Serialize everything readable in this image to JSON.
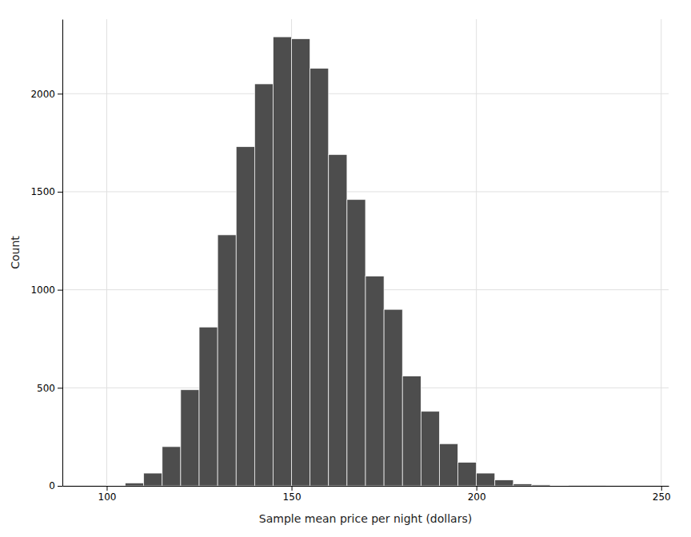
{
  "chart_data": {
    "type": "histogram",
    "xlabel": "Sample mean price per night (dollars)",
    "ylabel": "Count",
    "bins": [
      100,
      105,
      110,
      115,
      120,
      125,
      130,
      135,
      140,
      145,
      150,
      155,
      160,
      165,
      170,
      175,
      180,
      185,
      190,
      195,
      200,
      205,
      210,
      215,
      220,
      225,
      230,
      235
    ],
    "values": [
      2,
      15,
      65,
      200,
      490,
      810,
      1280,
      1730,
      2050,
      2290,
      2280,
      2130,
      1690,
      1460,
      1070,
      900,
      560,
      380,
      215,
      120,
      65,
      30,
      10,
      5,
      2,
      1,
      1
    ],
    "color": "#4d4d4d",
    "xlim": [
      88,
      252
    ],
    "ylim": [
      0,
      2380
    ],
    "xticks": [
      100,
      150,
      200,
      250
    ],
    "yticks": [
      0,
      500,
      1000,
      1500,
      2000
    ],
    "grid": true
  }
}
